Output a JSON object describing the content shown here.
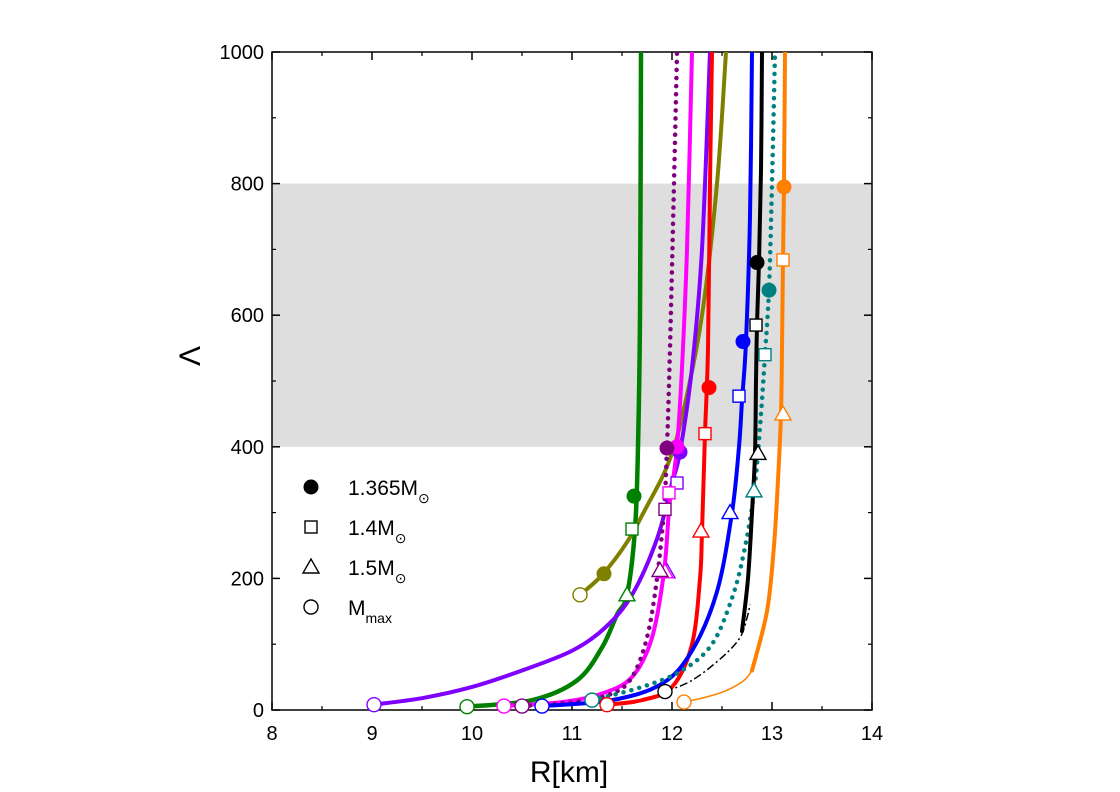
{
  "chart_data": {
    "type": "line",
    "xlabel": "R[km]",
    "ylabel": "Λ",
    "xlim": [
      8,
      14
    ],
    "ylim": [
      0,
      1000
    ],
    "xticks": [
      "8",
      "9",
      "10",
      "11",
      "12",
      "13",
      "14"
    ],
    "yticks": [
      "0",
      "200",
      "400",
      "600",
      "800",
      "1000"
    ],
    "shaded_band": {
      "y_from": 400,
      "y_to": 800,
      "color": "#dedede"
    },
    "legend": {
      "placement": "lower-left",
      "entries": [
        {
          "marker": "filled-circle",
          "text": "1.365M",
          "sub": "⊙"
        },
        {
          "marker": "open-square",
          "text": "1.4M",
          "sub": "⊙"
        },
        {
          "marker": "open-triangle",
          "text": "1.5M",
          "sub": "⊙"
        },
        {
          "marker": "open-circle",
          "text": " M",
          "sub": "max"
        }
      ]
    },
    "series": [
      {
        "color": "#008000",
        "style": "solid",
        "width": 4.5,
        "points": [
          [
            9.95,
            5
          ],
          [
            10.6,
            15
          ],
          [
            11.05,
            45
          ],
          [
            11.3,
            95
          ],
          [
            11.45,
            145
          ],
          [
            11.55,
            175
          ],
          [
            11.63,
            275
          ],
          [
            11.66,
            400
          ],
          [
            11.68,
            600
          ],
          [
            11.69,
            1000
          ]
        ],
        "markers": {
          "m1365": [
            11.62,
            325
          ],
          "m14": [
            11.6,
            275
          ],
          "m15": [
            11.55,
            175
          ],
          "mmax": [
            9.95,
            5
          ]
        }
      },
      {
        "color": "#808000",
        "style": "solid",
        "width": 4,
        "points": [
          [
            11.08,
            175
          ],
          [
            11.3,
            205
          ],
          [
            11.55,
            255
          ],
          [
            11.75,
            310
          ],
          [
            11.95,
            370
          ],
          [
            12.1,
            445
          ],
          [
            12.3,
            600
          ],
          [
            12.45,
            800
          ],
          [
            12.54,
            1000
          ]
        ],
        "markers": {
          "m1365": [
            11.32,
            207
          ],
          "mmax": [
            11.08,
            175
          ]
        }
      },
      {
        "color": "#8000ff",
        "style": "solid",
        "width": 4,
        "points": [
          [
            9.0,
            8
          ],
          [
            9.5,
            18
          ],
          [
            10.0,
            35
          ],
          [
            10.5,
            60
          ],
          [
            11.0,
            90
          ],
          [
            11.33,
            125
          ],
          [
            11.6,
            175
          ],
          [
            11.85,
            260
          ],
          [
            12.0,
            345
          ],
          [
            12.08,
            392
          ],
          [
            12.2,
            520
          ],
          [
            12.3,
            700
          ],
          [
            12.38,
            1000
          ]
        ],
        "markers": {
          "m1365": [
            12.08,
            392
          ],
          "m14": [
            12.05,
            345
          ],
          "m15": [
            11.95,
            210
          ],
          "mmax": [
            9.02,
            8
          ]
        }
      },
      {
        "color": "#ff00ff",
        "style": "solid",
        "width": 4,
        "points": [
          [
            10.3,
            6
          ],
          [
            10.9,
            12
          ],
          [
            11.3,
            25
          ],
          [
            11.6,
            50
          ],
          [
            11.8,
            110
          ],
          [
            11.92,
            210
          ],
          [
            11.97,
            305
          ],
          [
            12.0,
            340
          ],
          [
            12.05,
            400
          ],
          [
            12.1,
            520
          ],
          [
            12.15,
            700
          ],
          [
            12.2,
            1000
          ]
        ],
        "markers": {
          "m1365": [
            12.05,
            400
          ],
          "m14": [
            11.97,
            330
          ],
          "m15": [
            11.93,
            210
          ],
          "mmax": [
            10.32,
            6
          ]
        }
      },
      {
        "color": "#800080",
        "style": "dotted",
        "width": 4.5,
        "points": [
          [
            10.5,
            6
          ],
          [
            11.0,
            12
          ],
          [
            11.4,
            25
          ],
          [
            11.6,
            50
          ],
          [
            11.75,
            110
          ],
          [
            11.85,
            200
          ],
          [
            11.92,
            305
          ],
          [
            11.95,
            400
          ],
          [
            11.98,
            550
          ],
          [
            12.02,
            800
          ],
          [
            12.05,
            1000
          ]
        ],
        "markers": {
          "m1365": [
            11.95,
            398
          ],
          "m14": [
            11.93,
            305
          ],
          "m15": [
            11.88,
            212
          ],
          "mmax": [
            10.5,
            6
          ]
        }
      },
      {
        "color": "#ff0000",
        "style": "solid",
        "width": 4,
        "points": [
          [
            11.35,
            8
          ],
          [
            11.7,
            15
          ],
          [
            12.0,
            35
          ],
          [
            12.2,
            100
          ],
          [
            12.28,
            200
          ],
          [
            12.3,
            270
          ],
          [
            12.33,
            420
          ],
          [
            12.36,
            550
          ],
          [
            12.38,
            800
          ],
          [
            12.4,
            1000
          ]
        ],
        "markers": {
          "m1365": [
            12.37,
            490
          ],
          "m14": [
            12.33,
            420
          ],
          "m15": [
            12.29,
            272
          ],
          "mmax": [
            11.35,
            8
          ]
        }
      },
      {
        "color": "#0000ff",
        "style": "solid",
        "width": 4,
        "points": [
          [
            10.7,
            6
          ],
          [
            11.4,
            15
          ],
          [
            11.9,
            40
          ],
          [
            12.2,
            90
          ],
          [
            12.45,
            180
          ],
          [
            12.6,
            300
          ],
          [
            12.67,
            400
          ],
          [
            12.7,
            470
          ],
          [
            12.74,
            560
          ],
          [
            12.78,
            750
          ],
          [
            12.8,
            1000
          ]
        ],
        "markers": {
          "m1365": [
            12.71,
            560
          ],
          "m14": [
            12.67,
            477
          ],
          "m15": [
            12.58,
            300
          ],
          "mmax": [
            10.7,
            6
          ]
        }
      },
      {
        "color": "#008080",
        "style": "dotted",
        "width": 4.5,
        "points": [
          [
            11.2,
            15
          ],
          [
            11.7,
            35
          ],
          [
            12.1,
            60
          ],
          [
            12.4,
            100
          ],
          [
            12.6,
            170
          ],
          [
            12.72,
            240
          ],
          [
            12.82,
            330
          ],
          [
            12.88,
            430
          ],
          [
            12.93,
            540
          ],
          [
            12.97,
            640
          ],
          [
            13.0,
            800
          ],
          [
            13.03,
            1000
          ]
        ],
        "markers": {
          "m1365": [
            12.97,
            638
          ],
          "m14": [
            12.93,
            540
          ],
          "m15": [
            12.82,
            333
          ],
          "mmax": [
            11.2,
            15
          ]
        }
      },
      {
        "color": "#000000",
        "style": "solid",
        "width": 4,
        "points": [
          [
            12.7,
            120
          ],
          [
            12.76,
            200
          ],
          [
            12.8,
            300
          ],
          [
            12.83,
            390
          ],
          [
            12.84,
            500
          ],
          [
            12.85,
            585
          ],
          [
            12.87,
            680
          ],
          [
            12.89,
            820
          ],
          [
            12.9,
            1000
          ]
        ],
        "markers": {
          "m1365": [
            12.85,
            680
          ],
          "m14": [
            12.84,
            585
          ],
          "m15": [
            12.86,
            390
          ]
        }
      },
      {
        "color": "#000000",
        "style": "dashdot",
        "width": 1.5,
        "points": [
          [
            11.93,
            28
          ],
          [
            12.2,
            45
          ],
          [
            12.5,
            80
          ],
          [
            12.68,
            110
          ],
          [
            12.75,
            140
          ],
          [
            12.78,
            160
          ]
        ],
        "markers": {
          "mmax": [
            11.93,
            28
          ]
        }
      },
      {
        "color": "#ff8000",
        "style": "solid",
        "width": 4,
        "points": [
          [
            12.8,
            60
          ],
          [
            12.95,
            150
          ],
          [
            13.02,
            250
          ],
          [
            13.06,
            350
          ],
          [
            13.09,
            450
          ],
          [
            13.1,
            550
          ],
          [
            13.11,
            684
          ],
          [
            13.12,
            800
          ],
          [
            13.13,
            1000
          ]
        ],
        "markers": {
          "m1365": [
            13.12,
            795
          ],
          "m14": [
            13.11,
            684
          ],
          "m15": [
            13.11,
            450
          ]
        }
      },
      {
        "color": "#ff8000",
        "style": "solid",
        "width": 1.5,
        "points": [
          [
            12.12,
            12
          ],
          [
            12.35,
            20
          ],
          [
            12.55,
            30
          ],
          [
            12.72,
            45
          ],
          [
            12.8,
            60
          ]
        ],
        "markers": {
          "mmax": [
            12.12,
            12
          ]
        }
      }
    ]
  }
}
